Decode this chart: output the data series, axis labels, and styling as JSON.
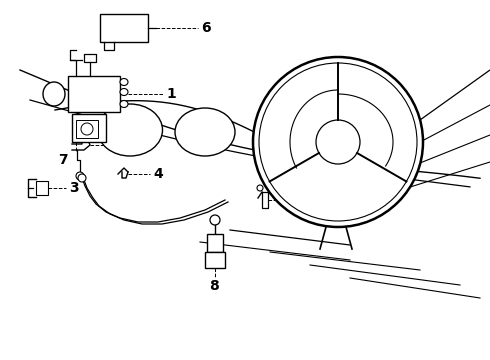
{
  "background_color": "#ffffff",
  "line_color": "#000000",
  "fig_width": 4.9,
  "fig_height": 3.6,
  "dpi": 100,
  "label_fontsize": 9,
  "label_fontsize_bold": true
}
